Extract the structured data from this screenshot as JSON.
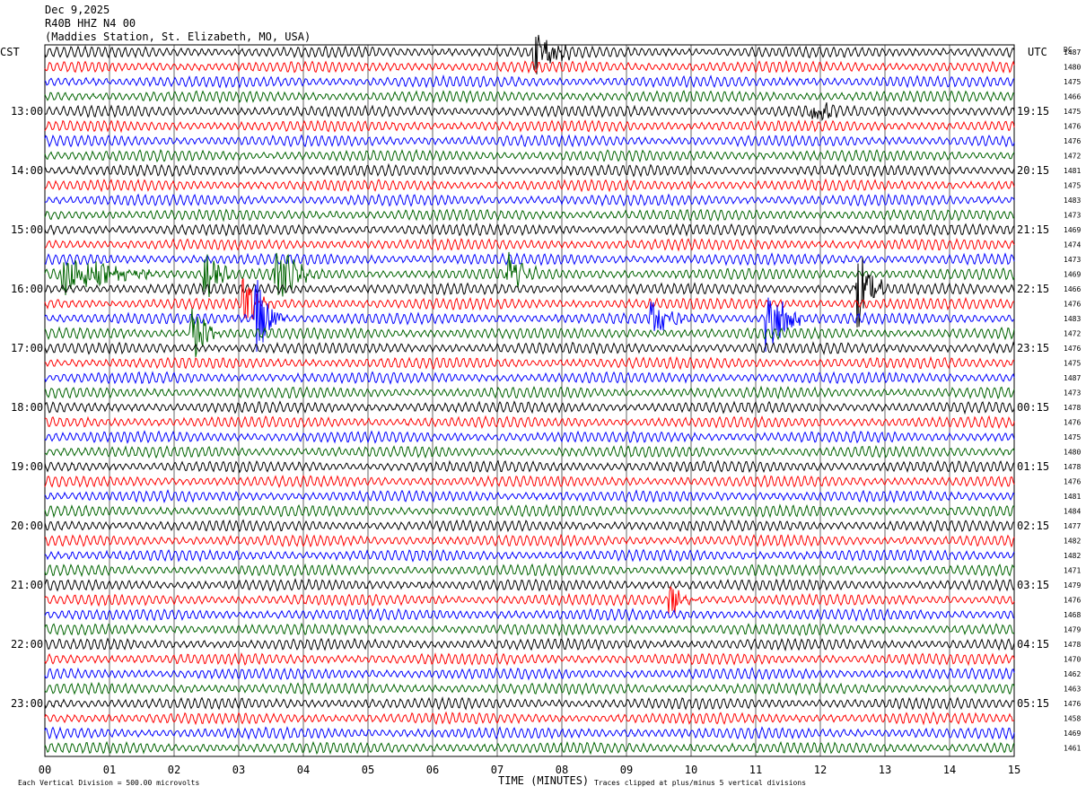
{
  "header": {
    "date": "Dec 9,2025",
    "station_code": "R40B HHZ N4 00",
    "station_name": "(Maddies Station, St. Elizabeth, MO, USA)"
  },
  "left_axis_title": "CST",
  "right_axis_title": "UTC",
  "dc_title": "DC",
  "chart_data": {
    "type": "line",
    "title": "Dec 9,2025 R40B HHZ N4 00 (Maddies Station, St. Elizabeth, MO, USA)",
    "xlabel": "TIME (MINUTES)",
    "xlim": [
      0,
      15
    ],
    "x_ticks": [
      "00",
      "01",
      "02",
      "03",
      "04",
      "05",
      "06",
      "07",
      "08",
      "09",
      "10",
      "11",
      "12",
      "13",
      "14",
      "15"
    ],
    "trace_minutes": 15,
    "trace_colors": [
      "#000000",
      "#ff0000",
      "#0000ff",
      "#006400"
    ],
    "left_time_labels": [
      "13:00",
      "14:00",
      "15:00",
      "16:00",
      "17:00",
      "18:00",
      "19:00",
      "20:00",
      "21:00",
      "22:00",
      "23:00"
    ],
    "right_time_labels": [
      "19:15",
      "20:15",
      "21:15",
      "22:15",
      "23:15",
      "00:15",
      "01:15",
      "02:15",
      "03:15",
      "04:15",
      "05:15"
    ],
    "label_row_offset": 4,
    "dc_offsets": [
      1487,
      1480,
      1475,
      1466,
      1475,
      1476,
      1476,
      1472,
      1481,
      1475,
      1483,
      1473,
      1469,
      1474,
      1473,
      1469,
      1466,
      1476,
      1483,
      1472,
      1476,
      1475,
      1487,
      1473,
      1478,
      1476,
      1475,
      1480,
      1478,
      1476,
      1481,
      1484,
      1477,
      1482,
      1482,
      1471,
      1479,
      1476,
      1468,
      1479,
      1478,
      1470,
      1462,
      1463,
      1476,
      1458,
      1469,
      1461
    ],
    "events": [
      {
        "row": 0,
        "minute": 7.6,
        "duration": 0.6,
        "amplitude": 1.4
      },
      {
        "row": 4,
        "minute": 11.9,
        "duration": 0.4,
        "amplitude": 1.0
      },
      {
        "row": 15,
        "minute": 0.3,
        "duration": 1.4,
        "amplitude": 1.4
      },
      {
        "row": 15,
        "minute": 2.5,
        "duration": 0.4,
        "amplitude": 1.6
      },
      {
        "row": 15,
        "minute": 3.6,
        "duration": 0.6,
        "amplitude": 2.2
      },
      {
        "row": 15,
        "minute": 7.2,
        "duration": 0.4,
        "amplitude": 1.6
      },
      {
        "row": 16,
        "minute": 12.6,
        "duration": 0.4,
        "amplitude": 3.0
      },
      {
        "row": 17,
        "minute": 3.1,
        "duration": 0.4,
        "amplitude": 1.5
      },
      {
        "row": 18,
        "minute": 3.3,
        "duration": 0.4,
        "amplitude": 2.6
      },
      {
        "row": 18,
        "minute": 9.4,
        "duration": 0.5,
        "amplitude": 1.4
      },
      {
        "row": 18,
        "minute": 11.2,
        "duration": 0.5,
        "amplitude": 2.8
      },
      {
        "row": 19,
        "minute": 2.3,
        "duration": 0.4,
        "amplitude": 2.0
      },
      {
        "row": 37,
        "minute": 9.7,
        "duration": 0.5,
        "amplitude": 1.2
      }
    ],
    "footer_division": "Each Vertical Division =  500.00 microvolts",
    "footer_clip": "Traces clipped at plus/minus 5 vertical divisions"
  }
}
